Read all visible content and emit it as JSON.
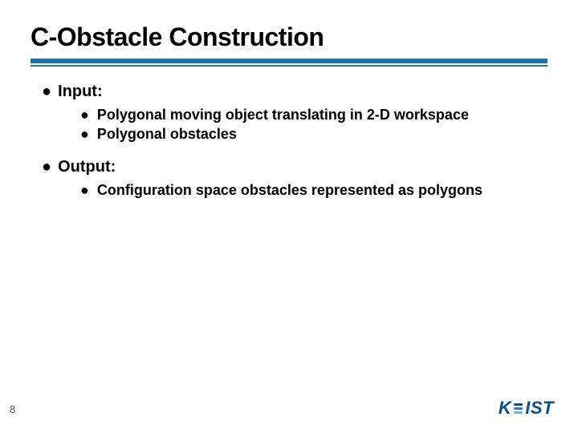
{
  "colors": {
    "rule": "#1f6fb2",
    "text": "#000000",
    "page_num": "#555555",
    "logo_primary": "#0b4d8f",
    "background": "#ffffff"
  },
  "slide": {
    "title": "C-Obstacle Construction",
    "sections": [
      {
        "label": "Input:",
        "items": [
          "Polygonal moving object translating in 2-D workspace",
          "Polygonal obstacles"
        ]
      },
      {
        "label": "Output:",
        "items": [
          "Configuration space obstacles represented as polygons"
        ]
      }
    ],
    "page_number": "8",
    "logo": {
      "k": "K",
      "rest": "IST"
    }
  }
}
